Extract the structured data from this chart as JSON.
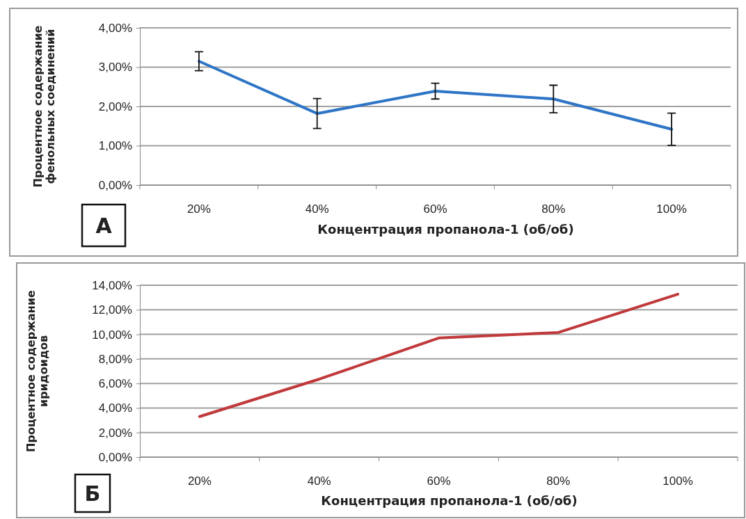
{
  "chart_data": [
    {
      "type": "line",
      "categories": [
        "20%",
        "40%",
        "60%",
        "80%",
        "100%"
      ],
      "xlabel": "Концентрация пропанола-1 (об/об)",
      "ylabel": "Процентное содержание\nфенольных соединений",
      "annotations": [
        "А"
      ],
      "series": [
        {
          "color": "#2e75c6",
          "values": [
            3.15,
            1.82,
            2.39,
            2.19,
            1.42
          ],
          "errors": [
            0.24,
            0.38,
            0.2,
            0.35,
            0.41
          ]
        }
      ],
      "ylim": [
        0,
        4
      ],
      "yticks": [
        {
          "value": 0,
          "label": "0,00%"
        },
        {
          "value": 1,
          "label": "1,00%"
        },
        {
          "value": 2,
          "label": "2,00%"
        },
        {
          "value": 3,
          "label": "3,00%"
        },
        {
          "value": 4,
          "label": "4,00%"
        }
      ],
      "grid": "y",
      "marker": "none"
    },
    {
      "type": "line",
      "categories": [
        "20%",
        "40%",
        "60%",
        "80%",
        "100%"
      ],
      "xlabel": "Концентрация пропанола-1 (об/об)",
      "ylabel": "Процентное содержание\nиридоидов",
      "annotations": [
        "Б"
      ],
      "series": [
        {
          "color": "#c0393b",
          "values": [
            3.3,
            6.35,
            9.7,
            10.15,
            13.27
          ]
        }
      ],
      "ylim": [
        0,
        14
      ],
      "yticks": [
        {
          "value": 0,
          "label": "0,00%"
        },
        {
          "value": 2,
          "label": "2,00%"
        },
        {
          "value": 4,
          "label": "4,00%"
        },
        {
          "value": 6,
          "label": "6,00%"
        },
        {
          "value": 8,
          "label": "8,00%"
        },
        {
          "value": 10,
          "label": "10,00%"
        },
        {
          "value": 12,
          "label": "12,00%"
        },
        {
          "value": 14,
          "label": "14,00%"
        }
      ],
      "grid": "y",
      "marker": "none"
    }
  ]
}
